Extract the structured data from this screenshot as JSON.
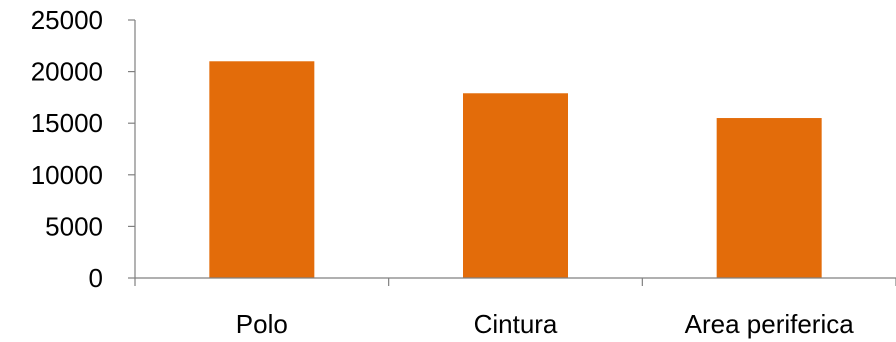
{
  "chart_data": {
    "type": "bar",
    "categories": [
      "Polo",
      "Cintura",
      "Area periferica"
    ],
    "values": [
      21000,
      17900,
      15500
    ],
    "ylim": [
      0,
      25000
    ],
    "yticks": [
      0,
      5000,
      10000,
      15000,
      20000,
      25000
    ],
    "title": "",
    "xlabel": "",
    "ylabel": "",
    "grid": false,
    "legend": "none",
    "bar_color": "#E36C0A",
    "axis_color": "#808080"
  }
}
